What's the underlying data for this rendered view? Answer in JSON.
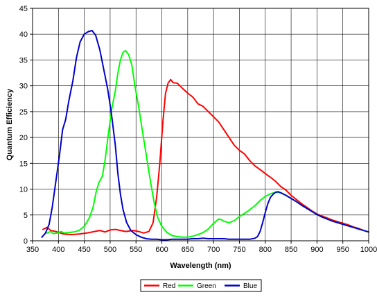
{
  "chart_data": {
    "type": "line",
    "title": "",
    "xlabel": "Wavelength (nm)",
    "ylabel": "Quantum Efficiency",
    "xlim": [
      350,
      1000
    ],
    "ylim": [
      0,
      45
    ],
    "x_ticks": [
      350,
      400,
      450,
      500,
      550,
      600,
      650,
      700,
      750,
      800,
      850,
      900,
      950,
      1000
    ],
    "y_ticks": [
      0,
      5,
      10,
      15,
      20,
      25,
      30,
      35,
      40,
      45
    ],
    "grid": true,
    "legend_position": "bottom",
    "series": [
      {
        "name": "Red",
        "color": "#ff0000",
        "points": [
          [
            370,
            2.2
          ],
          [
            378,
            2.6
          ],
          [
            385,
            2.0
          ],
          [
            395,
            1.8
          ],
          [
            410,
            1.3
          ],
          [
            425,
            1.2
          ],
          [
            440,
            1.3
          ],
          [
            455,
            1.5
          ],
          [
            470,
            1.8
          ],
          [
            480,
            2.0
          ],
          [
            490,
            1.7
          ],
          [
            500,
            2.1
          ],
          [
            510,
            2.2
          ],
          [
            520,
            2.0
          ],
          [
            530,
            1.8
          ],
          [
            545,
            2.0
          ],
          [
            555,
            1.8
          ],
          [
            565,
            1.5
          ],
          [
            575,
            1.8
          ],
          [
            583,
            3.5
          ],
          [
            590,
            8.5
          ],
          [
            596,
            15.0
          ],
          [
            602,
            23.0
          ],
          [
            607,
            28.5
          ],
          [
            612,
            30.5
          ],
          [
            617,
            31.2
          ],
          [
            622,
            30.6
          ],
          [
            630,
            30.5
          ],
          [
            640,
            29.5
          ],
          [
            650,
            28.6
          ],
          [
            660,
            27.8
          ],
          [
            670,
            26.5
          ],
          [
            680,
            26.0
          ],
          [
            690,
            25.0
          ],
          [
            700,
            24.0
          ],
          [
            710,
            23.0
          ],
          [
            720,
            21.5
          ],
          [
            730,
            20.0
          ],
          [
            740,
            18.5
          ],
          [
            750,
            17.5
          ],
          [
            760,
            16.8
          ],
          [
            770,
            15.5
          ],
          [
            780,
            14.5
          ],
          [
            790,
            13.8
          ],
          [
            800,
            13.0
          ],
          [
            810,
            12.3
          ],
          [
            820,
            11.5
          ],
          [
            830,
            10.5
          ],
          [
            840,
            9.8
          ],
          [
            850,
            8.8
          ],
          [
            860,
            8.0
          ],
          [
            870,
            7.2
          ],
          [
            880,
            6.5
          ],
          [
            890,
            5.8
          ],
          [
            900,
            5.2
          ],
          [
            910,
            4.8
          ],
          [
            920,
            4.4
          ],
          [
            930,
            4.0
          ],
          [
            940,
            3.7
          ],
          [
            950,
            3.4
          ],
          [
            960,
            3.1
          ],
          [
            970,
            2.7
          ],
          [
            980,
            2.4
          ],
          [
            990,
            2.0
          ],
          [
            1000,
            1.7
          ]
        ]
      },
      {
        "name": "Green",
        "color": "#00ff00",
        "points": [
          [
            378,
            1.5
          ],
          [
            385,
            1.8
          ],
          [
            390,
            1.4
          ],
          [
            398,
            1.5
          ],
          [
            405,
            1.8
          ],
          [
            412,
            1.5
          ],
          [
            420,
            1.6
          ],
          [
            430,
            1.7
          ],
          [
            440,
            2.0
          ],
          [
            450,
            2.8
          ],
          [
            460,
            4.5
          ],
          [
            467,
            6.5
          ],
          [
            473,
            9.5
          ],
          [
            478,
            11.2
          ],
          [
            485,
            12.5
          ],
          [
            490,
            15.5
          ],
          [
            497,
            21.0
          ],
          [
            503,
            25.5
          ],
          [
            510,
            29.0
          ],
          [
            515,
            32.5
          ],
          [
            520,
            35.0
          ],
          [
            525,
            36.5
          ],
          [
            530,
            36.8
          ],
          [
            536,
            36.0
          ],
          [
            542,
            34.0
          ],
          [
            548,
            30.0
          ],
          [
            555,
            26.0
          ],
          [
            562,
            21.5
          ],
          [
            570,
            16.5
          ],
          [
            578,
            11.5
          ],
          [
            585,
            7.5
          ],
          [
            592,
            4.5
          ],
          [
            600,
            2.8
          ],
          [
            610,
            1.6
          ],
          [
            620,
            1.0
          ],
          [
            630,
            0.8
          ],
          [
            640,
            0.7
          ],
          [
            650,
            0.7
          ],
          [
            660,
            0.9
          ],
          [
            670,
            1.2
          ],
          [
            680,
            1.6
          ],
          [
            690,
            2.3
          ],
          [
            700,
            3.4
          ],
          [
            710,
            4.2
          ],
          [
            715,
            4.1
          ],
          [
            720,
            3.8
          ],
          [
            730,
            3.5
          ],
          [
            740,
            3.9
          ],
          [
            750,
            4.7
          ],
          [
            760,
            5.3
          ],
          [
            770,
            6.0
          ],
          [
            780,
            6.8
          ],
          [
            790,
            7.8
          ],
          [
            800,
            8.6
          ],
          [
            810,
            9.1
          ],
          [
            820,
            9.4
          ],
          [
            830,
            9.3
          ],
          [
            840,
            8.8
          ],
          [
            850,
            8.2
          ],
          [
            860,
            7.6
          ],
          [
            870,
            6.9
          ],
          [
            880,
            6.3
          ],
          [
            890,
            5.7
          ],
          [
            900,
            5.1
          ],
          [
            910,
            4.6
          ],
          [
            920,
            4.2
          ],
          [
            930,
            3.8
          ],
          [
            940,
            3.5
          ],
          [
            950,
            3.2
          ],
          [
            960,
            2.9
          ],
          [
            970,
            2.6
          ],
          [
            980,
            2.3
          ],
          [
            990,
            2.0
          ],
          [
            1000,
            1.7
          ]
        ]
      },
      {
        "name": "Blue",
        "color": "#0000cc",
        "points": [
          [
            368,
            0.7
          ],
          [
            375,
            1.5
          ],
          [
            382,
            3.2
          ],
          [
            388,
            6.5
          ],
          [
            395,
            11.5
          ],
          [
            402,
            16.5
          ],
          [
            408,
            21.5
          ],
          [
            414,
            23.5
          ],
          [
            420,
            27.0
          ],
          [
            428,
            31.0
          ],
          [
            435,
            35.5
          ],
          [
            442,
            38.5
          ],
          [
            450,
            40.0
          ],
          [
            458,
            40.5
          ],
          [
            465,
            40.7
          ],
          [
            472,
            39.8
          ],
          [
            480,
            37.0
          ],
          [
            487,
            33.5
          ],
          [
            495,
            29.5
          ],
          [
            502,
            25.0
          ],
          [
            510,
            18.5
          ],
          [
            515,
            13.0
          ],
          [
            520,
            9.0
          ],
          [
            525,
            6.0
          ],
          [
            532,
            3.5
          ],
          [
            540,
            2.0
          ],
          [
            550,
            1.2
          ],
          [
            560,
            0.7
          ],
          [
            570,
            0.4
          ],
          [
            580,
            0.3
          ],
          [
            590,
            0.3
          ],
          [
            600,
            0.2
          ],
          [
            610,
            0.2
          ],
          [
            620,
            0.3
          ],
          [
            630,
            0.3
          ],
          [
            640,
            0.3
          ],
          [
            650,
            0.3
          ],
          [
            660,
            0.4
          ],
          [
            670,
            0.4
          ],
          [
            680,
            0.5
          ],
          [
            690,
            0.4
          ],
          [
            700,
            0.4
          ],
          [
            710,
            0.4
          ],
          [
            720,
            0.4
          ],
          [
            730,
            0.3
          ],
          [
            740,
            0.3
          ],
          [
            750,
            0.3
          ],
          [
            760,
            0.3
          ],
          [
            770,
            0.3
          ],
          [
            780,
            0.5
          ],
          [
            785,
            0.8
          ],
          [
            790,
            1.8
          ],
          [
            795,
            3.5
          ],
          [
            800,
            5.5
          ],
          [
            805,
            7.2
          ],
          [
            810,
            8.4
          ],
          [
            815,
            9.0
          ],
          [
            820,
            9.4
          ],
          [
            825,
            9.5
          ],
          [
            830,
            9.3
          ],
          [
            840,
            8.8
          ],
          [
            850,
            8.2
          ],
          [
            860,
            7.6
          ],
          [
            870,
            6.9
          ],
          [
            880,
            6.3
          ],
          [
            890,
            5.7
          ],
          [
            900,
            5.1
          ],
          [
            910,
            4.6
          ],
          [
            920,
            4.2
          ],
          [
            930,
            3.8
          ],
          [
            940,
            3.5
          ],
          [
            950,
            3.2
          ],
          [
            960,
            2.9
          ],
          [
            970,
            2.6
          ],
          [
            980,
            2.3
          ],
          [
            990,
            2.0
          ],
          [
            1000,
            1.7
          ]
        ]
      }
    ]
  }
}
